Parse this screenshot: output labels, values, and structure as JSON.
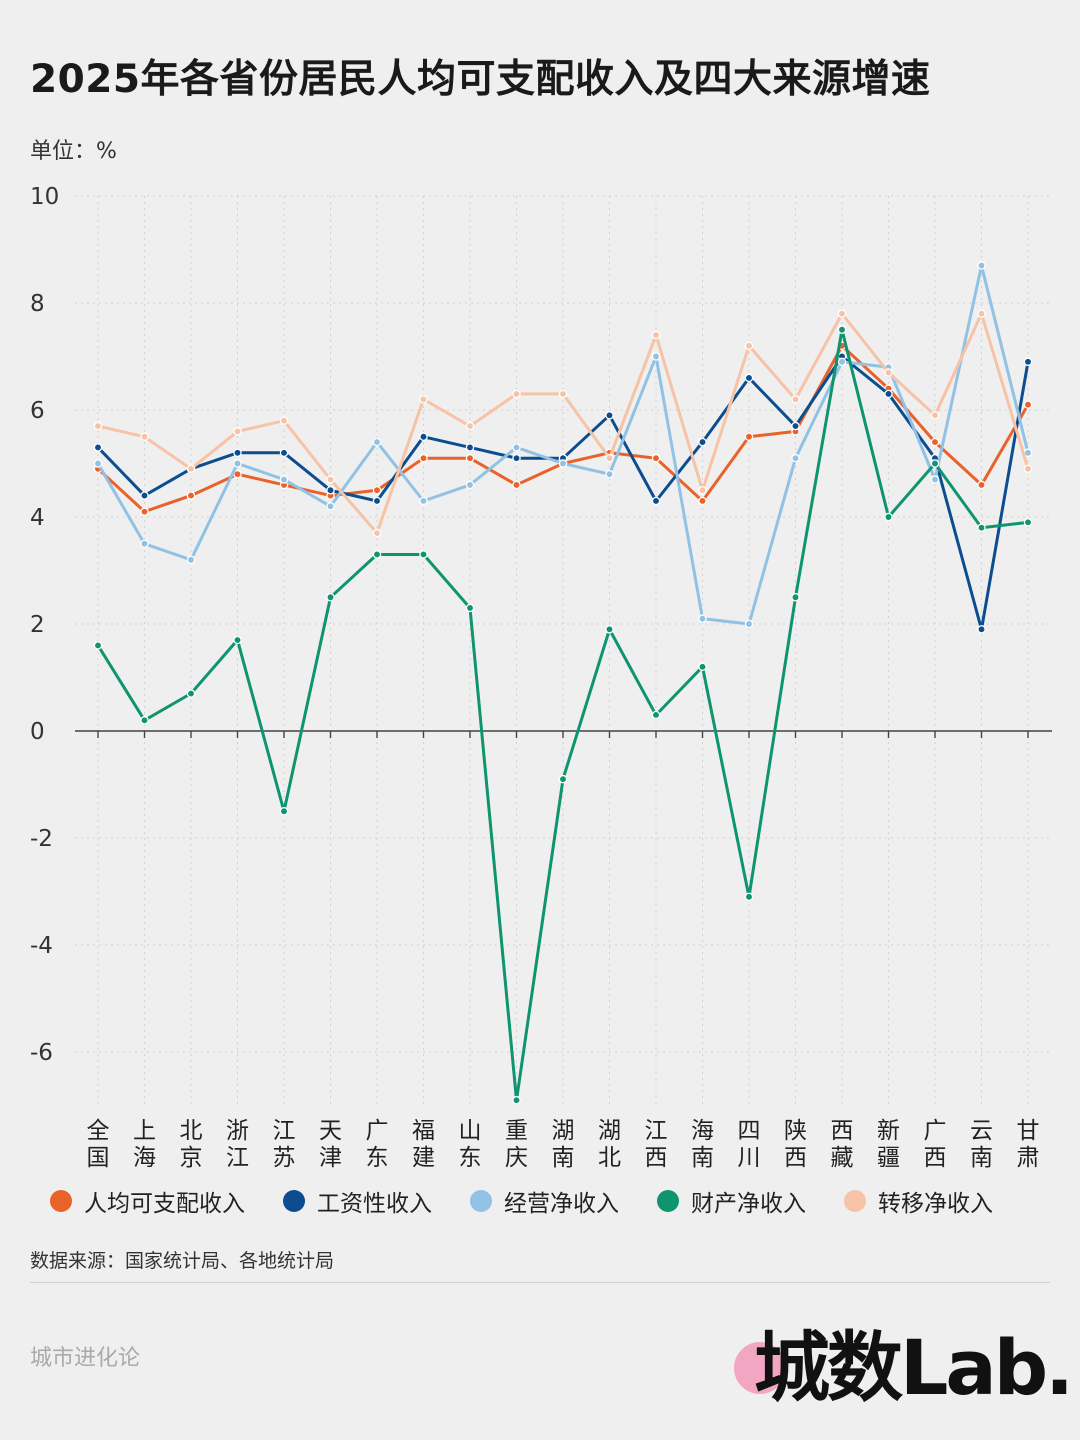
{
  "title": "2025年各省份居民人均可支配收入及四大来源增速",
  "unit_label": "单位：%",
  "source_label": "数据来源：国家统计局、各地统计局",
  "brand_label": "城市进化论",
  "logo_text": "城数Lab.",
  "chart_data": {
    "type": "line",
    "ylim": [
      -7,
      10
    ],
    "yticks": [
      10,
      8,
      6,
      4,
      2,
      0,
      -2,
      -4,
      -6
    ],
    "grid": true,
    "legend_position": "bottom",
    "categories": [
      "全国",
      "上海",
      "北京",
      "浙江",
      "江苏",
      "天津",
      "广东",
      "福建",
      "山东",
      "重庆",
      "湖南",
      "湖北",
      "江西",
      "海南",
      "四川",
      "陕西",
      "西藏",
      "新疆",
      "广西",
      "云南",
      "甘肃"
    ],
    "series": [
      {
        "name": "人均可支配收入",
        "color": "#e8622a",
        "values": [
          4.9,
          4.1,
          4.4,
          4.8,
          4.6,
          4.4,
          4.5,
          5.1,
          5.1,
          4.6,
          5.0,
          5.2,
          5.1,
          4.3,
          5.5,
          5.6,
          7.2,
          6.4,
          5.4,
          4.6,
          6.1
        ]
      },
      {
        "name": "工资性收入",
        "color": "#0b4d8f",
        "values": [
          5.3,
          4.4,
          4.9,
          5.2,
          5.2,
          4.5,
          4.3,
          5.5,
          5.3,
          5.1,
          5.1,
          5.9,
          4.3,
          5.4,
          6.6,
          5.7,
          7.0,
          6.3,
          5.1,
          1.9,
          6.9
        ]
      },
      {
        "name": "经营净收入",
        "color": "#91c2e4",
        "values": [
          5.0,
          3.5,
          3.2,
          5.0,
          4.7,
          4.2,
          5.4,
          4.3,
          4.6,
          5.3,
          5.0,
          4.8,
          7.0,
          2.1,
          2.0,
          5.1,
          6.9,
          6.8,
          4.7,
          8.7,
          5.2
        ]
      },
      {
        "name": "财产净收入",
        "color": "#0f9470",
        "values": [
          1.6,
          0.2,
          0.7,
          1.7,
          -1.5,
          2.5,
          3.3,
          3.3,
          2.3,
          -6.9,
          -0.9,
          1.9,
          0.3,
          1.2,
          -3.1,
          2.5,
          7.5,
          4.0,
          5.0,
          3.8,
          3.9
        ]
      },
      {
        "name": "转移净收入",
        "color": "#f7c3a6",
        "values": [
          5.7,
          5.5,
          4.9,
          5.6,
          5.8,
          4.7,
          3.7,
          6.2,
          5.7,
          6.3,
          6.3,
          5.1,
          7.4,
          4.5,
          7.2,
          6.2,
          7.8,
          6.7,
          5.9,
          7.8,
          4.9
        ]
      }
    ]
  }
}
